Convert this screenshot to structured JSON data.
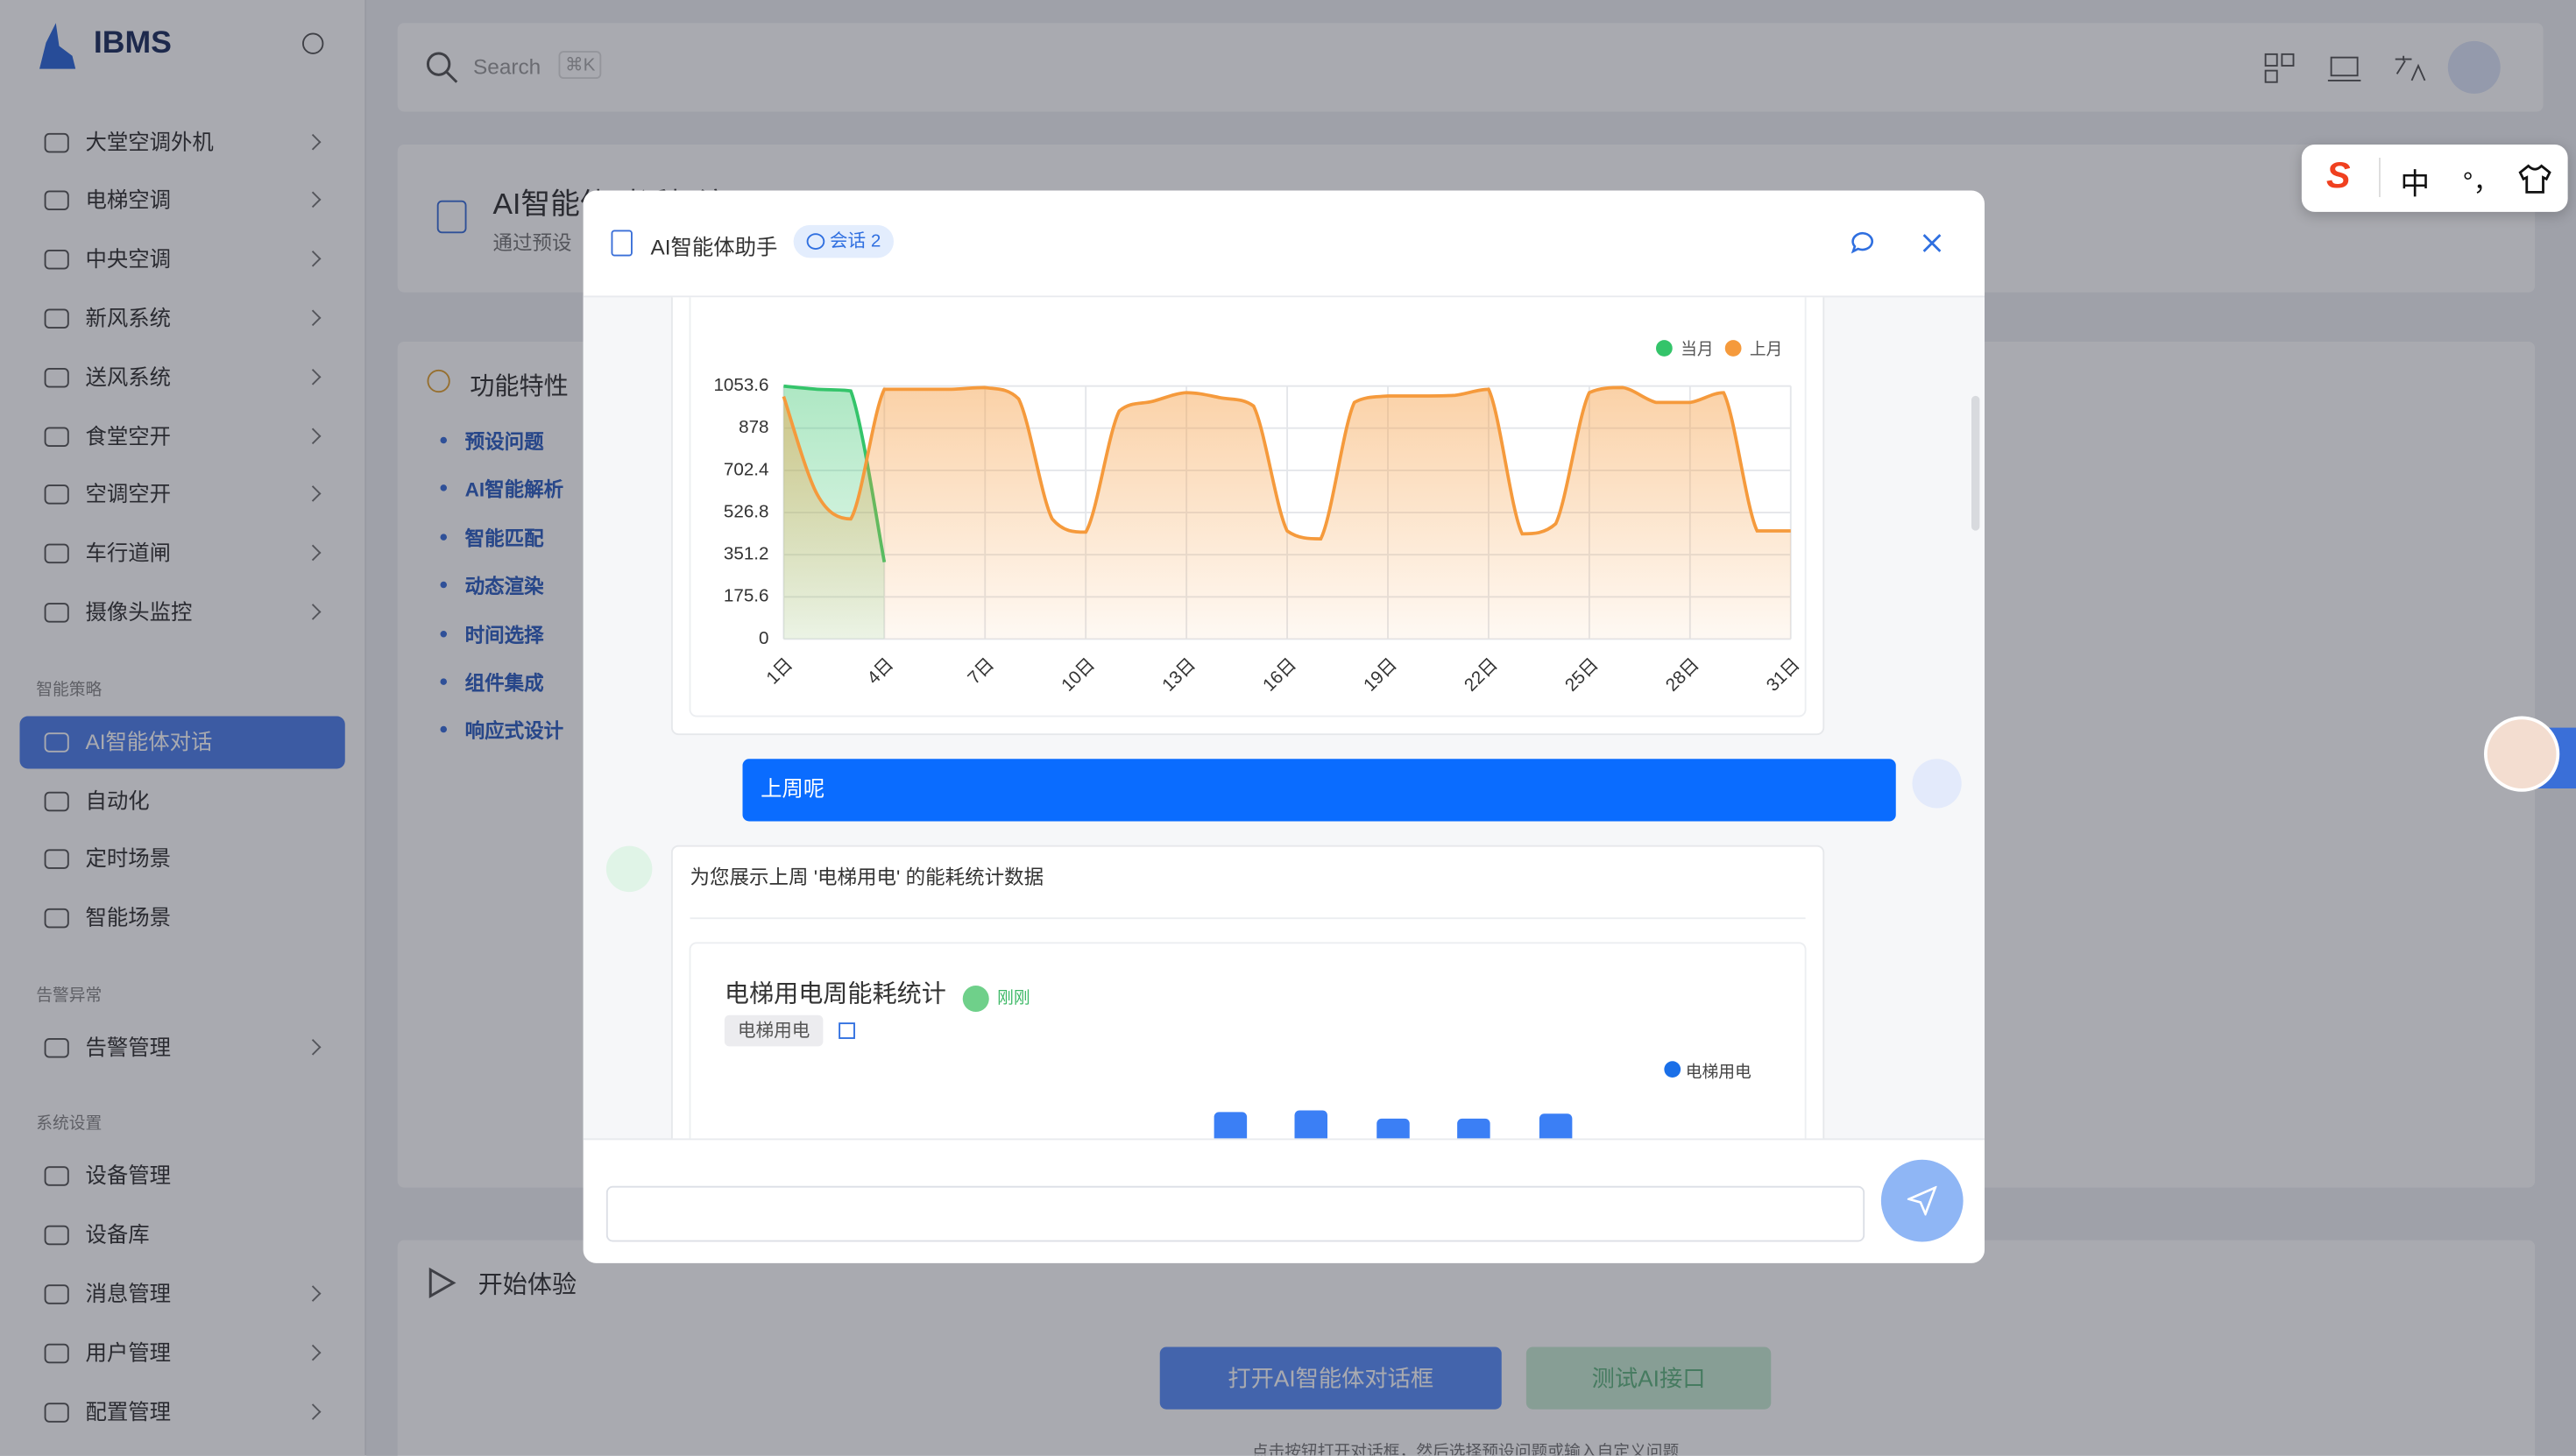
{
  "sidebar": {
    "brand": "IBMS",
    "menu": [
      "大堂空调外机",
      "电梯空调",
      "中央空调",
      "新风系统",
      "送风系统",
      "食堂空开",
      "空调空开",
      "车行道闸",
      "摄像头监控"
    ],
    "sections": [
      {
        "title": "智能策略",
        "items": [
          "AI智能体对话",
          "自动化",
          "定时场景",
          "智能场景"
        ]
      },
      {
        "title": "告警异常",
        "items": [
          "告警管理"
        ]
      },
      {
        "title": "系统设置",
        "items": [
          "设备管理",
          "设备库",
          "消息管理",
          "用户管理",
          "配置管理"
        ]
      }
    ]
  },
  "topbar": {
    "search_placeholder": "Search",
    "shortcut": "⌘K"
  },
  "page": {
    "title": "AI智能体对话框演示",
    "subtitle": "通过预设",
    "features_title": "功能特性",
    "features": [
      "预设问题",
      "AI智能解析",
      "智能匹配",
      "动态渲染",
      "时间选择",
      "组件集成",
      "响应式设计"
    ],
    "start_title": "开始体验",
    "buttons": [
      "打开AI智能体对话框",
      "测试AI接口"
    ],
    "note": "点击按钮打开对话框，然后选择预设问题或输入自定义问题"
  },
  "ime": {
    "mode": "中",
    "punct": "°，"
  },
  "dialog": {
    "title": "AI智能体助手",
    "session_badge": "会话 2",
    "user_message": "上周呢",
    "assistant_message": "为您展示上周 '电梯用电' 的能耗统计数据",
    "card": {
      "title": "电梯用电周能耗统计",
      "status": "刚刚",
      "tag": "电梯用电",
      "legend": "电梯用电"
    }
  },
  "chart_data": {
    "type": "line",
    "categories": [
      "1日",
      null,
      null,
      "4日",
      null,
      null,
      "7日",
      null,
      null,
      "10日",
      null,
      null,
      "13日",
      null,
      null,
      "16日",
      null,
      null,
      "19日",
      null,
      null,
      "22日",
      null,
      null,
      "25日",
      null,
      null,
      "28日",
      null,
      null,
      "31日"
    ],
    "series": [
      {
        "name": "当月",
        "color": "#34c46a",
        "values": [
          1053,
          1040,
          1033,
          320,
          null,
          null,
          null,
          null,
          null,
          null,
          null,
          null,
          null,
          null,
          null,
          null,
          null,
          null,
          null,
          null,
          null,
          null,
          null,
          null,
          null,
          null,
          null,
          null,
          null,
          null,
          null
        ]
      },
      {
        "name": "上月",
        "color": "#f59a3c",
        "values": [
          1010,
          602,
          500,
          1040,
          1040,
          1040,
          1047,
          1000,
          500,
          445,
          950,
          990,
          1026,
          1005,
          970,
          450,
          417,
          985,
          1012,
          1012,
          1015,
          1040,
          438,
          480,
          1026,
          1047,
          985,
          985,
          1026,
          450,
          450
        ]
      }
    ],
    "ylim": [
      0,
      1053.6
    ],
    "yticks": [
      0,
      175.6,
      351.2,
      526.8,
      702.4,
      878,
      1053.6
    ],
    "grid": true,
    "area": true,
    "smooth": true
  }
}
